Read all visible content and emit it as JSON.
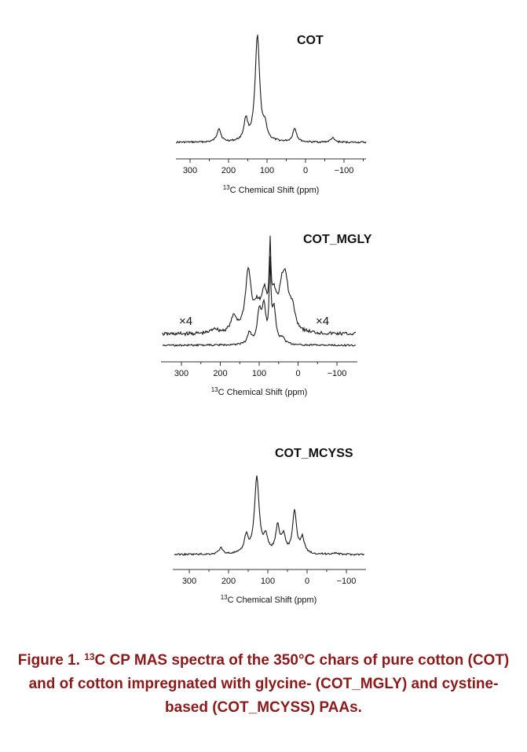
{
  "chart_data": [
    {
      "type": "line",
      "panel_label": "COT",
      "xlabel_iso": "13",
      "xlabel_text": "C Chemical Shift (ppm)",
      "xlim": [
        340,
        -150
      ],
      "x_reversed": true,
      "xticks": [
        300,
        200,
        100,
        0,
        -100
      ],
      "xtick_labels": [
        "300",
        "200",
        "100",
        "0",
        "−100"
      ],
      "grid": false,
      "series": [
        {
          "peaks": [
            {
              "x": 225,
              "height": 0.13
            },
            {
              "x": 155,
              "height": 0.2
            },
            {
              "x": 125,
              "height": 1.0
            },
            {
              "x": 105,
              "height": 0.12
            },
            {
              "x": 28,
              "height": 0.13
            },
            {
              "x": -70,
              "height": 0.04
            }
          ]
        }
      ]
    },
    {
      "type": "line",
      "panel_label": "COT_MGLY",
      "xlabel_iso": "13",
      "xlabel_text": "C Chemical Shift (ppm)",
      "xlim": [
        340,
        -150
      ],
      "x_reversed": true,
      "xticks": [
        300,
        200,
        100,
        0,
        -100
      ],
      "xtick_labels": [
        "300",
        "200",
        "100",
        "0",
        "−100"
      ],
      "grid": false,
      "annotations": [
        "×4",
        "×4"
      ],
      "series": [
        {
          "scale": "x4",
          "peaks": [
            {
              "x": 215,
              "height": 0.07
            },
            {
              "x": 165,
              "height": 0.22
            },
            {
              "x": 128,
              "height": 0.88
            },
            {
              "x": 105,
              "height": 0.28
            },
            {
              "x": 87,
              "height": 0.5
            },
            {
              "x": 72,
              "height": 1.0
            },
            {
              "x": 62,
              "height": 0.45
            },
            {
              "x": 42,
              "height": 0.45
            },
            {
              "x": 32,
              "height": 0.6
            },
            {
              "x": 15,
              "height": 0.3
            }
          ]
        },
        {
          "scale": "x1",
          "peaks": [
            {
              "x": 125,
              "height": 0.15
            },
            {
              "x": 100,
              "height": 0.4
            },
            {
              "x": 88,
              "height": 0.47
            },
            {
              "x": 72,
              "height": 1.0
            },
            {
              "x": 62,
              "height": 0.45
            },
            {
              "x": 40,
              "height": 0.08
            }
          ]
        }
      ]
    },
    {
      "type": "line",
      "panel_label": "COT_MCYSS",
      "xlabel_iso": "13",
      "xlabel_text": "C Chemical Shift (ppm)",
      "xlim": [
        340,
        -150
      ],
      "x_reversed": true,
      "xticks": [
        300,
        200,
        100,
        0,
        -100
      ],
      "xtick_labels": [
        "300",
        "200",
        "100",
        "0",
        "−100"
      ],
      "grid": false,
      "series": [
        {
          "peaks": [
            {
              "x": 220,
              "height": 0.08
            },
            {
              "x": 155,
              "height": 0.22
            },
            {
              "x": 128,
              "height": 1.0
            },
            {
              "x": 105,
              "height": 0.2
            },
            {
              "x": 75,
              "height": 0.35
            },
            {
              "x": 60,
              "height": 0.22
            },
            {
              "x": 32,
              "height": 0.55
            },
            {
              "x": 12,
              "height": 0.2
            },
            {
              "x": -70,
              "height": 0.02
            }
          ]
        }
      ]
    }
  ],
  "caption": {
    "figure_label": "Figure 1. ",
    "iso": "13",
    "line1_rest": "C CP MAS spectra of the 350°C chars of pure cotton (COT)",
    "line2": "and of cotton impregnated with glycine- (COT_MGLY) and cystine-",
    "line3": "based (COT_MCYSS) PAAs."
  },
  "colors": {
    "trace": "#1a1a1a",
    "axis": "#333333",
    "caption": "#8b1a1a"
  }
}
